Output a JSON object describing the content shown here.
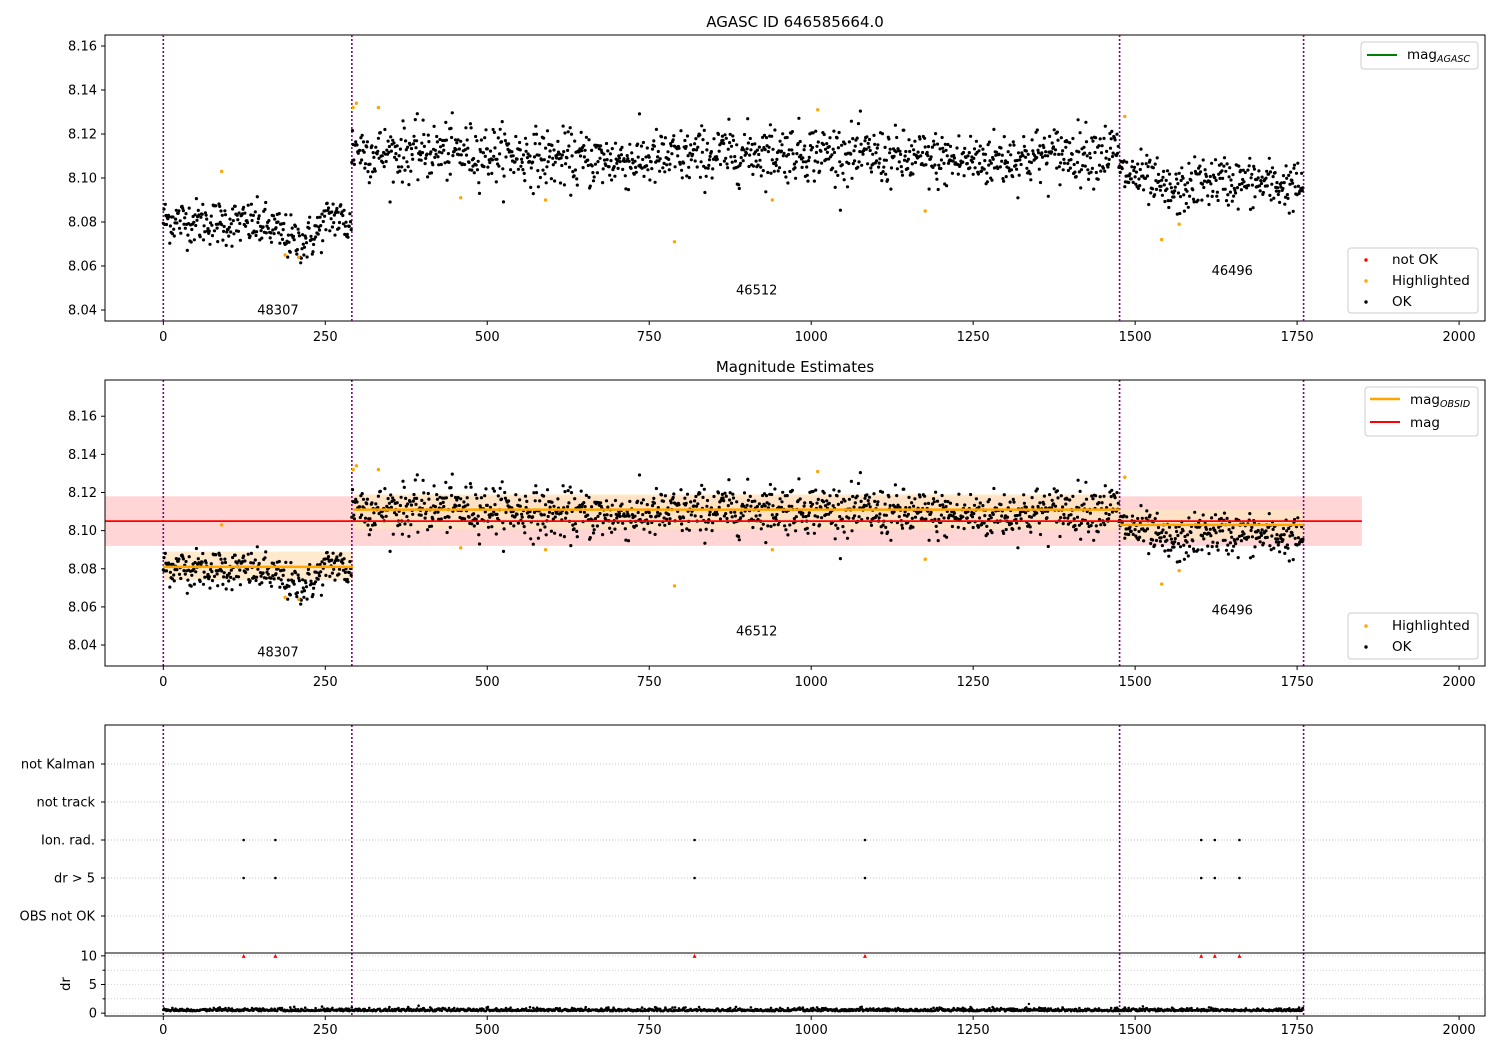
{
  "figure": {
    "background": "#ffffff"
  },
  "colors": {
    "ok": "#000000",
    "highlighted": "#ffa500",
    "not_ok": "#ff0000",
    "mag_line": "#ff0000",
    "mag_band": "#ffd0d0",
    "obsid_line": "#ffa500",
    "obsid_band": "#ffe5c0",
    "agasc_line": "#008000",
    "obs_boundary": "#800080",
    "grid": "#b0b0b0"
  },
  "chart_data": [
    {
      "panel": "top",
      "type": "scatter",
      "title": "AGASC ID 646585664.0",
      "xlim": [
        -90,
        2040
      ],
      "ylim": [
        8.035,
        8.165
      ],
      "xticks": [
        0,
        250,
        500,
        750,
        1000,
        1250,
        1500,
        1750,
        2000
      ],
      "yticks": [
        "8.04",
        "8.06",
        "8.08",
        "8.10",
        "8.12",
        "8.14",
        "8.16"
      ],
      "obs_boundaries": [
        0,
        291,
        1476,
        1760
      ],
      "obsid_labels": [
        {
          "text": "48307",
          "x": 145,
          "y": 8.038
        },
        {
          "text": "46512",
          "x": 884,
          "y": 8.047
        },
        {
          "text": "46496",
          "x": 1618,
          "y": 8.056
        }
      ],
      "segments": [
        {
          "obsid": "48307",
          "start": 0,
          "end": 291,
          "mean": 8.081,
          "std": 0.006,
          "drift": -0.004
        },
        {
          "obsid": "46512",
          "start": 291,
          "end": 1476,
          "mean": 8.11,
          "std": 0.0075,
          "drift": 0.0
        },
        {
          "obsid": "46496",
          "start": 1476,
          "end": 1760,
          "mean": 8.102,
          "std": 0.0065,
          "drift": -0.006
        }
      ],
      "highlighted_points": [
        [
          90,
          8.103
        ],
        [
          188,
          8.065
        ],
        [
          209,
          8.064
        ],
        [
          293,
          8.132
        ],
        [
          298,
          8.134
        ],
        [
          332,
          8.132
        ],
        [
          459,
          8.091
        ],
        [
          590,
          8.09
        ],
        [
          789,
          8.071
        ],
        [
          940,
          8.09
        ],
        [
          1010,
          8.131
        ],
        [
          1176,
          8.085
        ],
        [
          1484,
          8.128
        ],
        [
          1541,
          8.072
        ],
        [
          1568,
          8.079
        ]
      ],
      "legend_lines": [
        {
          "label": "mag",
          "sub": "AGASC",
          "color": "#008000"
        }
      ],
      "legend_points": [
        {
          "label": "not OK",
          "color": "#ff0000"
        },
        {
          "label": "Highlighted",
          "color": "#ffa500"
        },
        {
          "label": "OK",
          "color": "#000000"
        }
      ]
    },
    {
      "panel": "middle",
      "type": "scatter",
      "title": "Magnitude Estimates",
      "xlim": [
        -90,
        2040
      ],
      "ylim": [
        8.029,
        8.179
      ],
      "xticks": [
        0,
        250,
        500,
        750,
        1000,
        1250,
        1500,
        1750,
        2000
      ],
      "yticks": [
        "8.04",
        "8.06",
        "8.08",
        "8.10",
        "8.12",
        "8.14",
        "8.16"
      ],
      "obs_boundaries": [
        0,
        291,
        1476,
        1760
      ],
      "obsid_labels": [
        {
          "text": "48307",
          "x": 145,
          "y": 8.034
        },
        {
          "text": "46512",
          "x": 884,
          "y": 8.045
        },
        {
          "text": "46496",
          "x": 1618,
          "y": 8.056
        }
      ],
      "mag": {
        "value": 8.105,
        "band": [
          8.092,
          8.118
        ],
        "x_range": [
          0,
          1850
        ]
      },
      "mag_obsid": [
        {
          "start": 0,
          "end": 293,
          "value": 8.081,
          "band": [
            8.074,
            8.089
          ]
        },
        {
          "start": 293,
          "end": 1476,
          "value": 8.111,
          "band": [
            8.101,
            8.119
          ]
        },
        {
          "start": 1476,
          "end": 1760,
          "value": 8.103,
          "band": [
            8.095,
            8.111
          ]
        }
      ],
      "legend_lines": [
        {
          "label": "mag",
          "sub": "OBSID",
          "color": "#ffa500"
        },
        {
          "label": "mag",
          "sub": "",
          "color": "#ff0000"
        }
      ],
      "legend_points": [
        {
          "label": "Highlighted",
          "color": "#ffa500"
        },
        {
          "label": "OK",
          "color": "#000000"
        }
      ]
    },
    {
      "panel": "flags",
      "type": "scatter",
      "categories": [
        "OBS not OK",
        "dr > 5",
        "Ion. rad.",
        "not track",
        "not Kalman"
      ],
      "xlim": [
        -90,
        2040
      ],
      "obs_boundaries": [
        0,
        291,
        1476,
        1760
      ],
      "flags": {
        "dr > 5": [
          124,
          173,
          820,
          1083,
          1602,
          1623,
          1661
        ],
        "Ion. rad.": [
          124,
          173,
          820,
          1083,
          1602,
          1623,
          1661
        ]
      }
    },
    {
      "panel": "dr",
      "type": "scatter",
      "ylabel": "dr",
      "xlim": [
        -90,
        2040
      ],
      "ylim": [
        -0.5,
        10.5
      ],
      "yticks": [
        0,
        5,
        10
      ],
      "xticks": [
        0,
        250,
        500,
        750,
        1000,
        1250,
        1500,
        1750,
        2000
      ],
      "clipped_points": [
        124,
        173,
        820,
        1083,
        1602,
        1623,
        1661
      ],
      "outliers": [
        [
          1336,
          1.6
        ]
      ],
      "baseline": 0.35
    }
  ]
}
